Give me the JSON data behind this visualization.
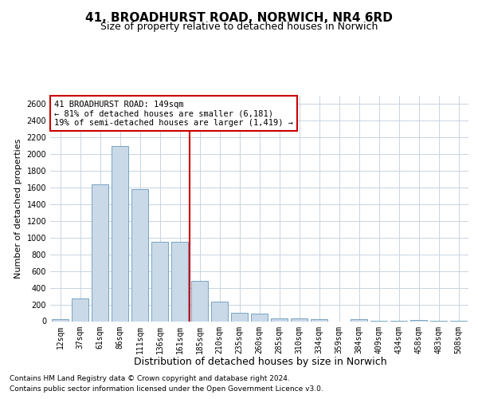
{
  "title": "41, BROADHURST ROAD, NORWICH, NR4 6RD",
  "subtitle": "Size of property relative to detached houses in Norwich",
  "xlabel": "Distribution of detached houses by size in Norwich",
  "ylabel": "Number of detached properties",
  "categories": [
    "12sqm",
    "37sqm",
    "61sqm",
    "86sqm",
    "111sqm",
    "136sqm",
    "161sqm",
    "185sqm",
    "210sqm",
    "235sqm",
    "260sqm",
    "285sqm",
    "310sqm",
    "334sqm",
    "359sqm",
    "384sqm",
    "409sqm",
    "434sqm",
    "458sqm",
    "483sqm",
    "508sqm"
  ],
  "values": [
    20,
    270,
    1640,
    2100,
    1580,
    950,
    950,
    480,
    230,
    100,
    90,
    35,
    35,
    20,
    0,
    20,
    5,
    5,
    15,
    3,
    8
  ],
  "bar_color": "#c9d9e8",
  "bar_edge_color": "#6699bb",
  "vline_color": "#cc0000",
  "annotation_text": "41 BROADHURST ROAD: 149sqm\n← 81% of detached houses are smaller (6,181)\n19% of semi-detached houses are larger (1,419) →",
  "annotation_box_color": "#cc0000",
  "ylim": [
    0,
    2700
  ],
  "yticks": [
    0,
    200,
    400,
    600,
    800,
    1000,
    1200,
    1400,
    1600,
    1800,
    2000,
    2200,
    2400,
    2600
  ],
  "footnote1": "Contains HM Land Registry data © Crown copyright and database right 2024.",
  "footnote2": "Contains public sector information licensed under the Open Government Licence v3.0.",
  "title_fontsize": 11,
  "subtitle_fontsize": 9,
  "xlabel_fontsize": 9,
  "ylabel_fontsize": 8,
  "tick_fontsize": 7,
  "annot_fontsize": 7.5,
  "footnote_fontsize": 6.5,
  "background_color": "#ffffff",
  "grid_color": "#c8d4e0",
  "vline_index": 6
}
